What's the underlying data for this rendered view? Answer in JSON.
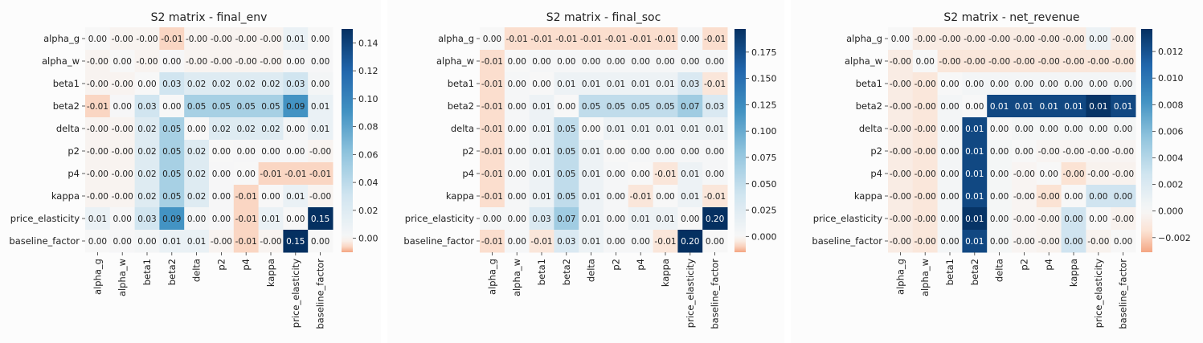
{
  "chart_data": [
    {
      "type": "heatmap",
      "title": "S2 matrix - final_env",
      "labels": [
        "alpha_g",
        "alpha_w",
        "beta1",
        "beta2",
        "delta",
        "p2",
        "p4",
        "kappa",
        "price_elasticity",
        "baseline_factor"
      ],
      "display": [
        [
          "0.00",
          "-0.00",
          "-0.00",
          "-0.01",
          "-0.00",
          "-0.00",
          "-0.00",
          "-0.00",
          "0.01",
          "0.00"
        ],
        [
          "-0.00",
          "0.00",
          "-0.00",
          "0.00",
          "-0.00",
          "-0.00",
          "-0.00",
          "-0.00",
          "0.00",
          "0.00"
        ],
        [
          "-0.00",
          "-0.00",
          "0.00",
          "0.03",
          "0.02",
          "0.02",
          "0.02",
          "0.02",
          "0.03",
          "0.00"
        ],
        [
          "-0.01",
          "0.00",
          "0.03",
          "0.00",
          "0.05",
          "0.05",
          "0.05",
          "0.05",
          "0.09",
          "0.01"
        ],
        [
          "-0.00",
          "-0.00",
          "0.02",
          "0.05",
          "0.00",
          "0.02",
          "0.02",
          "0.02",
          "0.00",
          "0.01"
        ],
        [
          "-0.00",
          "-0.00",
          "0.02",
          "0.05",
          "0.02",
          "0.00",
          "0.00",
          "0.00",
          "0.00",
          "-0.00"
        ],
        [
          "-0.00",
          "-0.00",
          "0.02",
          "0.05",
          "0.02",
          "0.00",
          "0.00",
          "-0.01",
          "-0.01",
          "-0.01"
        ],
        [
          "-0.00",
          "-0.00",
          "0.02",
          "0.05",
          "0.02",
          "0.00",
          "-0.01",
          "0.00",
          "0.01",
          "-0.00"
        ],
        [
          "0.01",
          "0.00",
          "0.03",
          "0.09",
          "0.00",
          "0.00",
          "-0.01",
          "0.01",
          "0.00",
          "0.15"
        ],
        [
          "0.00",
          "0.00",
          "0.00",
          "0.01",
          "0.01",
          "-0.00",
          "-0.01",
          "-0.00",
          "0.15",
          "0.00"
        ]
      ],
      "values": [
        [
          0.0,
          -0.001,
          -0.001,
          -0.006,
          -0.001,
          -0.001,
          -0.001,
          -0.001,
          0.01,
          0.0
        ],
        [
          -0.001,
          0.0,
          -0.001,
          0.001,
          -0.001,
          -0.001,
          -0.001,
          -0.001,
          0.001,
          0.001
        ],
        [
          -0.001,
          -0.001,
          0.0,
          0.03,
          0.02,
          0.02,
          0.02,
          0.02,
          0.03,
          0.003
        ],
        [
          -0.006,
          0.001,
          0.03,
          0.0,
          0.05,
          0.05,
          0.05,
          0.05,
          0.09,
          0.01
        ],
        [
          -0.001,
          -0.001,
          0.02,
          0.05,
          0.0,
          0.02,
          0.02,
          0.02,
          0.003,
          0.01
        ],
        [
          -0.001,
          -0.001,
          0.02,
          0.05,
          0.02,
          0.0,
          0.001,
          0.001,
          0.001,
          -0.001
        ],
        [
          -0.001,
          -0.001,
          0.02,
          0.05,
          0.02,
          0.001,
          0.0,
          -0.006,
          -0.006,
          -0.006
        ],
        [
          -0.001,
          -0.001,
          0.02,
          0.05,
          0.02,
          0.001,
          -0.006,
          0.0,
          0.01,
          -0.001
        ],
        [
          0.01,
          0.001,
          0.03,
          0.09,
          0.003,
          0.001,
          -0.006,
          0.01,
          0.0,
          0.15
        ],
        [
          0.0,
          0.001,
          0.003,
          0.01,
          0.01,
          -0.001,
          -0.006,
          -0.001,
          0.15,
          0.0
        ]
      ],
      "colorbar": {
        "min": -0.01,
        "max": 0.15,
        "ticks": [
          "0.00",
          "0.02",
          "0.04",
          "0.06",
          "0.08",
          "0.10",
          "0.12",
          "0.14"
        ],
        "tick_values": [
          0,
          0.02,
          0.04,
          0.06,
          0.08,
          0.1,
          0.12,
          0.14
        ]
      }
    },
    {
      "type": "heatmap",
      "title": "S2 matrix - final_soc",
      "labels": [
        "alpha_g",
        "alpha_w",
        "beta1",
        "beta2",
        "delta",
        "p2",
        "p4",
        "kappa",
        "price_elasticity",
        "baseline_factor"
      ],
      "display": [
        [
          "0.00",
          "-0.01",
          "-0.01",
          "-0.01",
          "-0.01",
          "-0.01",
          "-0.01",
          "-0.01",
          "0.00",
          "-0.01"
        ],
        [
          "-0.01",
          "0.00",
          "0.00",
          "0.00",
          "0.00",
          "0.00",
          "0.00",
          "0.00",
          "0.00",
          "0.00"
        ],
        [
          "-0.01",
          "0.00",
          "0.00",
          "0.01",
          "0.01",
          "0.01",
          "0.01",
          "0.01",
          "0.03",
          "-0.01"
        ],
        [
          "-0.01",
          "0.00",
          "0.01",
          "0.00",
          "0.05",
          "0.05",
          "0.05",
          "0.05",
          "0.07",
          "0.03"
        ],
        [
          "-0.01",
          "0.00",
          "0.01",
          "0.05",
          "0.00",
          "0.01",
          "0.01",
          "0.01",
          "0.01",
          "0.01"
        ],
        [
          "-0.01",
          "0.00",
          "0.01",
          "0.05",
          "0.01",
          "0.00",
          "0.00",
          "0.00",
          "0.00",
          "0.00"
        ],
        [
          "-0.01",
          "0.00",
          "0.01",
          "0.05",
          "0.01",
          "0.00",
          "0.00",
          "-0.01",
          "0.01",
          "0.00"
        ],
        [
          "-0.01",
          "0.00",
          "0.01",
          "0.05",
          "0.01",
          "0.00",
          "-0.01",
          "0.00",
          "0.01",
          "-0.01"
        ],
        [
          "0.00",
          "0.00",
          "0.03",
          "0.07",
          "0.01",
          "0.00",
          "0.01",
          "0.01",
          "0.00",
          "0.20"
        ],
        [
          "-0.01",
          "0.00",
          "-0.01",
          "0.03",
          "0.01",
          "0.00",
          "0.00",
          "-0.01",
          "0.20",
          "0.00"
        ]
      ],
      "values": [
        [
          0.0,
          -0.008,
          -0.008,
          -0.008,
          -0.008,
          -0.008,
          -0.008,
          -0.008,
          0.002,
          -0.008
        ],
        [
          -0.008,
          0.0,
          0.002,
          0.002,
          0.002,
          0.002,
          0.002,
          0.002,
          0.002,
          0.002
        ],
        [
          -0.008,
          0.002,
          0.0,
          0.01,
          0.01,
          0.01,
          0.01,
          0.01,
          0.03,
          -0.006
        ],
        [
          -0.008,
          0.002,
          0.01,
          0.0,
          0.05,
          0.05,
          0.05,
          0.05,
          0.07,
          0.03
        ],
        [
          -0.008,
          0.002,
          0.01,
          0.05,
          0.0,
          0.01,
          0.01,
          0.01,
          0.01,
          0.01
        ],
        [
          -0.008,
          0.002,
          0.01,
          0.05,
          0.01,
          0.0,
          0.002,
          0.002,
          0.002,
          0.002
        ],
        [
          -0.008,
          0.002,
          0.01,
          0.05,
          0.01,
          0.002,
          0.0,
          -0.006,
          0.01,
          0.002
        ],
        [
          -0.008,
          0.002,
          0.01,
          0.05,
          0.01,
          0.002,
          -0.006,
          0.0,
          0.01,
          -0.006
        ],
        [
          0.002,
          0.002,
          0.03,
          0.07,
          0.01,
          0.002,
          0.01,
          0.01,
          0.0,
          0.2
        ],
        [
          -0.008,
          0.002,
          -0.006,
          0.03,
          0.01,
          0.002,
          0.002,
          -0.006,
          0.2,
          0.0
        ]
      ],
      "colorbar": {
        "min": -0.015,
        "max": 0.197,
        "ticks": [
          "0.000",
          "0.025",
          "0.050",
          "0.075",
          "0.100",
          "0.125",
          "0.150",
          "0.175"
        ],
        "tick_values": [
          0,
          0.025,
          0.05,
          0.075,
          0.1,
          0.125,
          0.15,
          0.175
        ]
      }
    },
    {
      "type": "heatmap",
      "title": "S2 matrix - net_revenue",
      "labels": [
        "alpha_g",
        "alpha_w",
        "beta1",
        "beta2",
        "delta",
        "p2",
        "p4",
        "kappa",
        "price_elasticity",
        "baseline_factor"
      ],
      "display": [
        [
          "0.00",
          "-0.00",
          "-0.00",
          "-0.00",
          "-0.00",
          "-0.00",
          "-0.00",
          "-0.00",
          "0.00",
          "-0.00"
        ],
        [
          "-0.00",
          "0.00",
          "-0.00",
          "-0.00",
          "-0.00",
          "-0.00",
          "-0.00",
          "-0.00",
          "-0.00",
          "-0.00"
        ],
        [
          "-0.00",
          "-0.00",
          "0.00",
          "0.00",
          "0.00",
          "0.00",
          "0.00",
          "0.00",
          "0.00",
          "0.00"
        ],
        [
          "-0.00",
          "-0.00",
          "0.00",
          "0.00",
          "0.01",
          "0.01",
          "0.01",
          "0.01",
          "0.01",
          "0.01"
        ],
        [
          "-0.00",
          "-0.00",
          "0.00",
          "0.01",
          "0.00",
          "0.00",
          "0.00",
          "0.00",
          "0.00",
          "0.00"
        ],
        [
          "-0.00",
          "-0.00",
          "0.00",
          "0.01",
          "0.00",
          "0.00",
          "-0.00",
          "-0.00",
          "-0.00",
          "-0.00"
        ],
        [
          "-0.00",
          "-0.00",
          "0.00",
          "0.01",
          "0.00",
          "-0.00",
          "0.00",
          "-0.00",
          "-0.00",
          "-0.00"
        ],
        [
          "-0.00",
          "-0.00",
          "0.00",
          "0.01",
          "0.00",
          "-0.00",
          "-0.00",
          "0.00",
          "0.00",
          "0.00"
        ],
        [
          "-0.00",
          "-0.00",
          "0.00",
          "0.01",
          "0.00",
          "-0.00",
          "-0.00",
          "0.00",
          "0.00",
          "-0.00"
        ],
        [
          "-0.00",
          "-0.00",
          "0.00",
          "0.01",
          "0.00",
          "-0.00",
          "-0.00",
          "0.00",
          "-0.00",
          "0.00"
        ]
      ],
      "values": [
        [
          0.0,
          -0.0008,
          -0.0008,
          -0.0008,
          -0.0008,
          -0.0008,
          -0.0008,
          -0.0008,
          0.0008,
          -0.0008
        ],
        [
          -0.0008,
          0.0,
          -0.0012,
          -0.0012,
          -0.0012,
          -0.0012,
          -0.0012,
          -0.0012,
          -0.0012,
          -0.0012
        ],
        [
          -0.0008,
          -0.0012,
          0.0,
          0.0003,
          0.0003,
          0.0003,
          0.0003,
          0.0003,
          0.0003,
          0.0003
        ],
        [
          -0.0008,
          -0.0012,
          0.0003,
          0.0,
          0.0125,
          0.0125,
          0.0125,
          0.0125,
          0.0135,
          0.0125
        ],
        [
          -0.0008,
          -0.0012,
          0.0003,
          0.0125,
          0.0,
          0.0002,
          0.0002,
          0.0002,
          0.0002,
          0.0002
        ],
        [
          -0.0008,
          -0.0012,
          0.0003,
          0.0125,
          0.0002,
          0.0,
          -0.0002,
          -0.0002,
          -0.0002,
          -0.0002
        ],
        [
          -0.0008,
          -0.0012,
          0.0003,
          0.0125,
          0.0002,
          -0.0002,
          0.0,
          -0.0015,
          -0.0004,
          -0.0004
        ],
        [
          -0.0008,
          -0.0012,
          0.0003,
          0.0125,
          0.0002,
          -0.0002,
          -0.0015,
          0.0,
          0.0028,
          0.0028
        ],
        [
          -0.0008,
          -0.0012,
          0.0003,
          0.0135,
          0.0002,
          -0.0002,
          -0.0004,
          0.0028,
          0.0,
          -0.0004
        ],
        [
          -0.0008,
          -0.0012,
          0.0003,
          0.0125,
          0.0002,
          -0.0002,
          -0.0004,
          0.0028,
          -0.0004,
          0.0
        ]
      ],
      "colorbar": {
        "min": -0.0031,
        "max": 0.0137,
        "ticks": [
          "−0.002",
          "0.000",
          "0.002",
          "0.004",
          "0.006",
          "0.008",
          "0.010",
          "0.012"
        ],
        "tick_values": [
          -0.002,
          0,
          0.002,
          0.004,
          0.006,
          0.008,
          0.01,
          0.012
        ]
      }
    }
  ]
}
